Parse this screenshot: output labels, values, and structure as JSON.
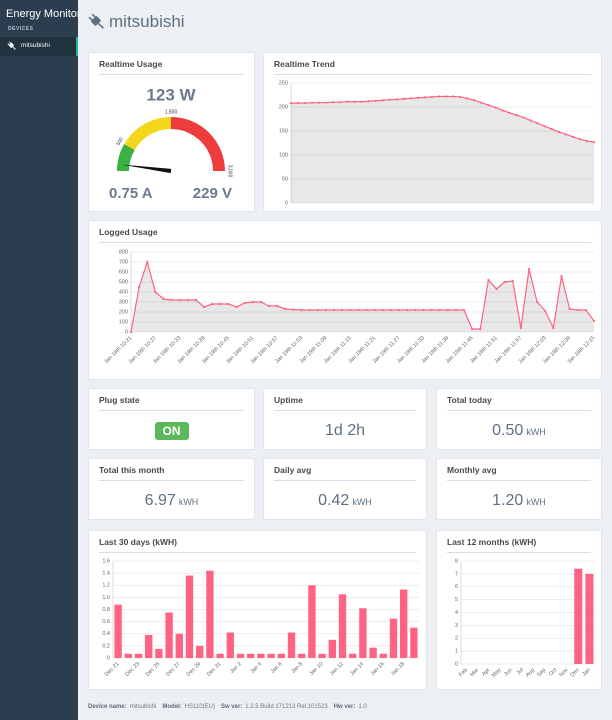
{
  "sidebar": {
    "title": "Energy Monitor",
    "section": "DEVICES",
    "devices": [
      "mitsubishi"
    ]
  },
  "header": {
    "title": "mitsubishi"
  },
  "chart_data": [
    {
      "type": "gauge",
      "title": "Realtime Usage",
      "values": [
        123
      ],
      "value_labels": [
        "123 W"
      ],
      "current": "0.75 A",
      "voltage": "229 V",
      "lim": [
        0,
        3000
      ],
      "ticks": [
        500,
        {
          "value": 1500,
          "label": "1,500"
        },
        {
          "value": 3000,
          "label": "3,000"
        }
      ],
      "bands": [
        {
          "from": 0,
          "to": 500,
          "color": "#3cb043"
        },
        {
          "from": 500,
          "to": 1500,
          "color": "#f3d51c"
        },
        {
          "from": 1500,
          "to": 3000,
          "color": "#ee3b3b"
        }
      ]
    },
    {
      "type": "line",
      "title": "Realtime Trend",
      "color": "#ff6384",
      "values": [
        208,
        208,
        208,
        209,
        209,
        209,
        210,
        210,
        211,
        211,
        211,
        212,
        213,
        214,
        215,
        216,
        217,
        218,
        219,
        220,
        221,
        222,
        222,
        222,
        221,
        218,
        214,
        209,
        204,
        199,
        193,
        188,
        183,
        178,
        172,
        166,
        160,
        154,
        148,
        143,
        138,
        133,
        129,
        127
      ],
      "ylim": [
        0,
        250
      ],
      "yticks": [
        0,
        50,
        100,
        150,
        200,
        250
      ],
      "grid": true
    },
    {
      "type": "line",
      "title": "Logged Usage",
      "color": "#ff6384",
      "categories": [
        "Jan 19th 10:21",
        null,
        null,
        "Jan 19th 10:27",
        null,
        null,
        "Jan 19th 10:33",
        null,
        null,
        "Jan 19th 10:39",
        null,
        null,
        "Jan 19th 10:45",
        null,
        null,
        "Jan 19th 10:51",
        null,
        null,
        "Jan 19th 10:57",
        null,
        null,
        "Jan 19th 11:03",
        null,
        null,
        "Jan 19th 11:09",
        null,
        null,
        "Jan 19th 11:15",
        null,
        null,
        "Jan 19th 11:21",
        null,
        null,
        "Jan 19th 11:27",
        null,
        null,
        "Jan 19th 11:33",
        null,
        null,
        "Jan 19th 11:39",
        null,
        null,
        "Jan 19th 11:45",
        null,
        null,
        "Jan 19th 11:51",
        null,
        null,
        "Jan 19th 11:57",
        null,
        null,
        "Jan 19th 12:03",
        null,
        null,
        "Jan 19th 12:09",
        null,
        null,
        "Jan 19th 12:15"
      ],
      "values": [
        0,
        450,
        700,
        400,
        330,
        320,
        320,
        320,
        320,
        250,
        280,
        280,
        280,
        250,
        290,
        300,
        300,
        260,
        260,
        230,
        225,
        220,
        220,
        220,
        220,
        220,
        220,
        220,
        220,
        220,
        220,
        220,
        220,
        220,
        220,
        220,
        220,
        220,
        220,
        220,
        220,
        220,
        30,
        30,
        520,
        430,
        500,
        510,
        40,
        630,
        300,
        210,
        40,
        560,
        230,
        220,
        220,
        110
      ],
      "ylim": [
        0,
        800
      ],
      "yticks": [
        0,
        100,
        200,
        300,
        400,
        500,
        600,
        700,
        800
      ],
      "grid": true
    },
    {
      "type": "bar",
      "title": "Last 30 days (kWH)",
      "color": "#ff6384",
      "categories": [
        "Dec 21",
        null,
        "Dec 23",
        null,
        "Dec 25",
        null,
        "Dec 27",
        null,
        "Dec 29",
        null,
        "Dec 31",
        null,
        "Jan 2",
        null,
        "Jan 4",
        null,
        "Jan 6",
        null,
        "Jan 8",
        null,
        "Jan 10",
        null,
        "Jan 12",
        null,
        "Jan 14",
        null,
        "Jan 16",
        null,
        "Jan 18",
        null
      ],
      "values": [
        0.88,
        0.07,
        0.07,
        0.38,
        0.15,
        0.75,
        0.4,
        1.36,
        0.2,
        1.44,
        0.07,
        0.42,
        0.07,
        0.07,
        0.07,
        0.07,
        0.07,
        0.42,
        0.07,
        1.2,
        0.07,
        0.3,
        1.05,
        0.07,
        0.82,
        0.17,
        0.07,
        0.65,
        1.13,
        0.5
      ],
      "ylim": [
        0,
        1.6
      ],
      "yticks": [
        0,
        0.2,
        0.4,
        0.6,
        0.8,
        {
          "value": 1,
          "label": "1.0"
        },
        1.2,
        1.4,
        1.6
      ],
      "grid": true
    },
    {
      "type": "bar",
      "title": "Last 12 months (kWH)",
      "color": "#ff6384",
      "categories": [
        "Feb",
        "Mar",
        "Apr",
        "May",
        "Jun",
        "Jul",
        "Aug",
        "Sep",
        "Oct",
        "Nov",
        "Dec",
        "Jan"
      ],
      "values": [
        0,
        0,
        0,
        0,
        0,
        0,
        0,
        0,
        0,
        0,
        7.4,
        7.0
      ],
      "ylim": [
        0,
        8
      ],
      "yticks": [
        0,
        1,
        2,
        3,
        4,
        5,
        6,
        7,
        8
      ],
      "grid": true
    }
  ],
  "stats": [
    {
      "title": "Plug state",
      "value": "ON"
    },
    {
      "title": "Uptime",
      "value": "1d 2h"
    },
    {
      "title": "Total today",
      "value": "0.50",
      "unit": "kWH"
    },
    {
      "title": "Total this month",
      "value": "6.97",
      "unit": "kWH"
    },
    {
      "title": "Daily avg",
      "value": "0.42",
      "unit": "kWH"
    },
    {
      "title": "Monthly avg",
      "value": "1.20",
      "unit": "kWH"
    }
  ],
  "footer": [
    {
      "label": "Device name:",
      "value": "mitsubishi"
    },
    {
      "label": "Model:",
      "value": "HS110(EU)"
    },
    {
      "label": "Sw ver:",
      "value": "1.2.5 Build 171213 Rel.101523"
    },
    {
      "label": "Hw ver:",
      "value": "1.0"
    }
  ]
}
